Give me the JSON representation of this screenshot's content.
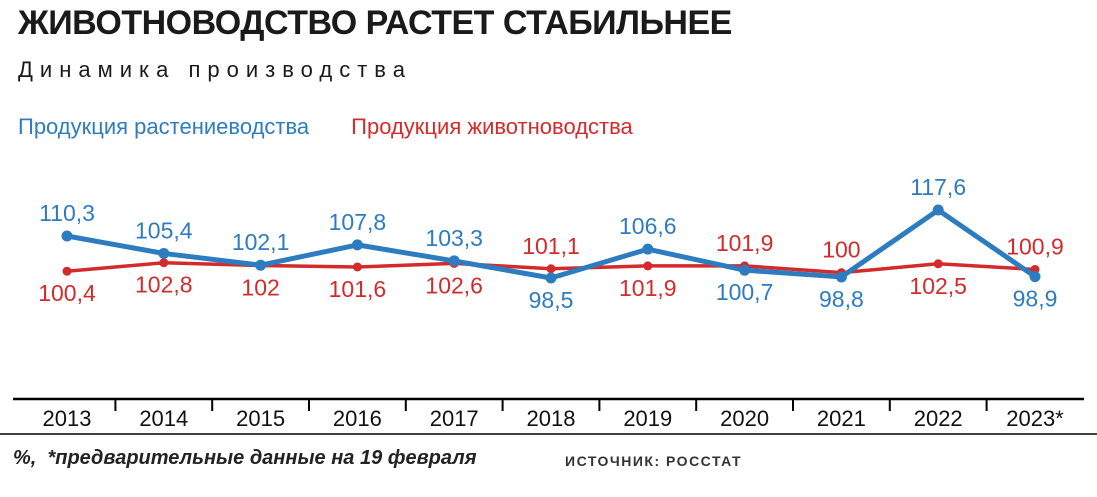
{
  "title": "ЖИВОТНОВОДСТВО РАСТЕТ СТАБИЛЬНЕЕ",
  "subtitle": "Динамика производства",
  "legend": [
    {
      "label": "Продукция растениеводства",
      "color": "#2e7cc0"
    },
    {
      "label": "Продукция животноводства",
      "color": "#d32b2b"
    }
  ],
  "footnote": "%,  *предварительные данные на 19 февраля",
  "source": "ИСТОЧНИК: РОССТАТ",
  "chart_data": {
    "type": "line",
    "title": "ЖИВОТНОВОДСТВО РАСТЕТ СТАБИЛЬНЕЕ",
    "subtitle": "Динамика производства",
    "unit": "%",
    "categories": [
      "2013",
      "2014",
      "2015",
      "2016",
      "2017",
      "2018",
      "2019",
      "2020",
      "2021",
      "2022",
      "2023*"
    ],
    "series": [
      {
        "name": "Продукция растениеводства",
        "color": "#2e7cc0",
        "values": [
          110.3,
          105.4,
          102.1,
          107.8,
          103.3,
          98.5,
          106.6,
          100.7,
          98.8,
          117.6,
          98.9
        ],
        "labels": [
          "110,3",
          "105,4",
          "102,1",
          "107,8",
          "103,3",
          "98,5",
          "106,6",
          "100,7",
          "98,8",
          "117,6",
          "98,9"
        ],
        "label_pos": [
          "above",
          "above",
          "above",
          "above",
          "above",
          "below",
          "above",
          "below",
          "below",
          "above",
          "below"
        ]
      },
      {
        "name": "Продукция животноводства",
        "color": "#d32b2b",
        "values": [
          100.4,
          102.8,
          102,
          101.6,
          102.6,
          101.1,
          101.9,
          101.9,
          100,
          102.5,
          100.9
        ],
        "labels": [
          "100,4",
          "102,8",
          "102",
          "101,6",
          "102,6",
          "101,1",
          "101,9",
          "101,9",
          "100",
          "102,5",
          "100,9"
        ],
        "label_pos": [
          "below",
          "below",
          "below",
          "below",
          "below",
          "above",
          "below",
          "above",
          "above",
          "below",
          "above"
        ]
      }
    ],
    "ylim": [
      95,
      120
    ],
    "grid": false,
    "legend_position": "top"
  }
}
